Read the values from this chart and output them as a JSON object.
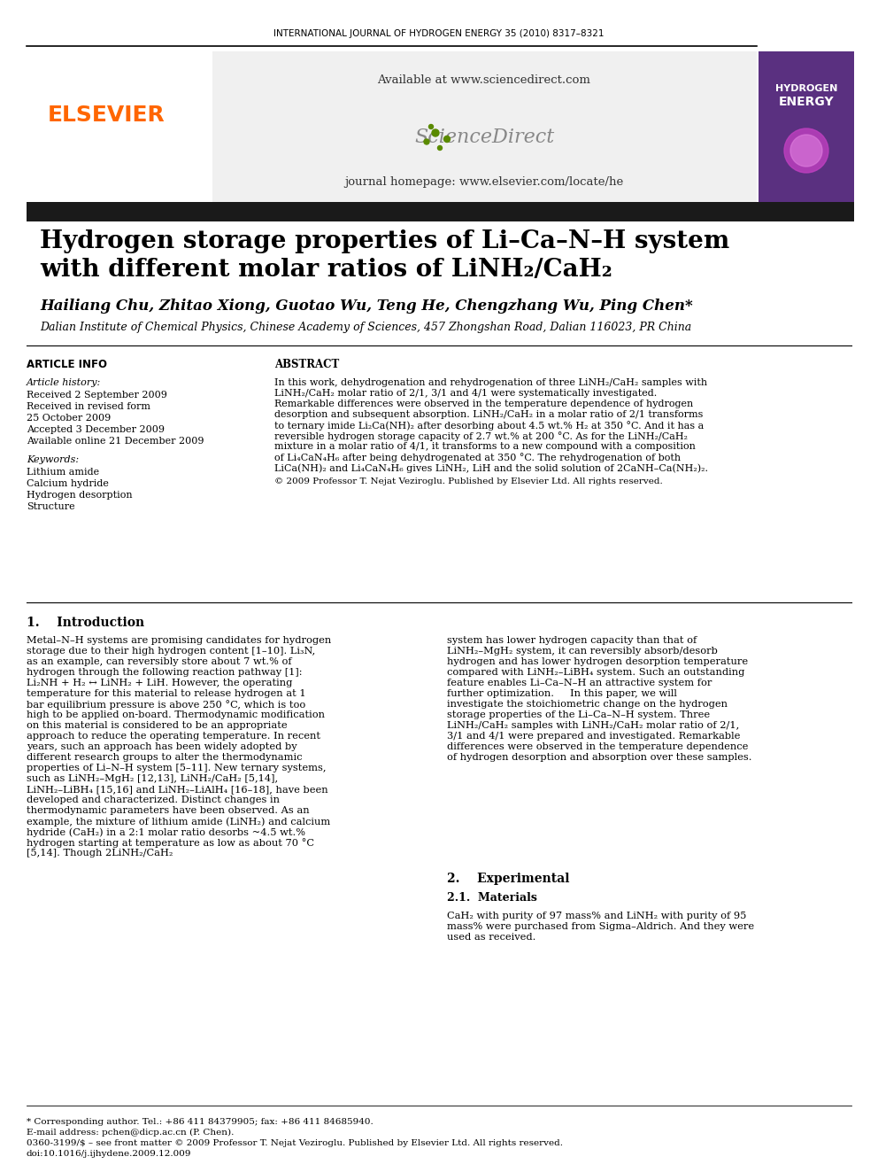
{
  "journal_header": "INTERNATIONAL JOURNAL OF HYDROGEN ENERGY 35 (2010) 8317–8321",
  "title_line1": "Hydrogen storage properties of Li–Ca–N–H system",
  "title_line2": "with different molar ratios of LiNH",
  "title_line2_sub": "2",
  "title_line2_end": "/CaH",
  "title_line2_sub2": "2",
  "authors": "Hailiang Chu, Zhitao Xiong, Guotao Wu, Teng He, Chengzhang Wu, Ping Chen*",
  "affiliation": "Dalian Institute of Chemical Physics, Chinese Academy of Sciences, 457 Zhongshan Road, Dalian 116023, PR China",
  "article_info_header": "ARTICLE INFO",
  "article_history_label": "Article history:",
  "received_label": "Received 2 September 2009",
  "revised_label": "Received in revised form",
  "revised_date": "25 October 2009",
  "accepted_label": "Accepted 3 December 2009",
  "available_label": "Available online 21 December 2009",
  "keywords_label": "Keywords:",
  "keyword1": "Lithium amide",
  "keyword2": "Calcium hydride",
  "keyword3": "Hydrogen desorption",
  "keyword4": "Structure",
  "abstract_header": "ABSTRACT",
  "abstract_text": "In this work, dehydrogenation and rehydrogenation of three LiNH₂/CaH₂ samples with LiNH₂/CaH₂ molar ratio of 2/1, 3/1 and 4/1 were systematically investigated. Remarkable differences were observed in the temperature dependence of hydrogen desorption and subsequent absorption. LiNH₂/CaH₂ in a molar ratio of 2/1 transforms to ternary imide Li₂Ca(NH)₂ after desorbing about 4.5 wt.% H₂ at 350 °C. And it has a reversible hydrogen storage capacity of 2.7 wt.% at 200 °C. As for the LiNH₂/CaH₂ mixture in a molar ratio of 4/1, it transforms to a new compound with a composition of Li₄CaN₄H₆ after being dehydrogenated at 350 °C. The rehydrogenation of both LiCa(NH)₂ and Li₄CaN₄H₆ gives LiNH₂, LiH and the solid solution of 2CaNH–Ca(NH₂)₂.",
  "copyright": "© 2009 Professor T. Nejat Veziroglu. Published by Elsevier Ltd. All rights reserved.",
  "intro_number": "1.",
  "intro_title": "Introduction",
  "intro_col1": "Metal–N–H systems are promising candidates for hydrogen storage due to their high hydrogen content [1–10]. Li₃N, as an example, can reversibly store about 7 wt.% of hydrogen through the following reaction pathway [1]: Li₂NH + H₂ ↔ LiNH₂ + LiH. However, the operating temperature for this material to release hydrogen at 1 bar equilibrium pressure is above 250 °C, which is too high to be applied on-board. Thermodynamic modification on this material is considered to be an appropriate approach to reduce the operating temperature. In recent years, such an approach has been widely adopted by different research groups to alter the thermodynamic properties of Li–N–H system [5–11]. New ternary systems, such as LiNH₂–MgH₂ [12,13], LiNH₂/CaH₂ [5,14], LiNH₂–LiBH₄ [15,16] and LiNH₂–LiAlH₄ [16–18], have been developed and characterized. Distinct changes in thermodynamic parameters have been observed. As an example, the mixture of lithium amide (LiNH₂) and calcium hydride (CaH₂) in a 2:1 molar ratio desorbs ~4.5 wt.% hydrogen starting at temperature as low as about 70 °C [5,14]. Though 2LiNH₂/CaH₂",
  "intro_col2": "system has lower hydrogen capacity than that of LiNH₂–MgH₂ system, it can reversibly absorb/desorb hydrogen and has lower hydrogen desorption temperature compared with LiNH₂–LiBH₄ system. Such an outstanding feature enables Li–Ca–N–H an attractive system for further optimization.\n    In this paper, we will investigate the stoichiometric change on the hydrogen storage properties of the Li–Ca–N–H system. Three LiNH₂/CaH₂ samples with LiNH₂/CaH₂ molar ratio of 2/1, 3/1 and 4/1 were prepared and investigated. Remarkable differences were observed in the temperature dependence of hydrogen desorption and absorption over these samples.",
  "section2_number": "2.",
  "section2_title": "Experimental",
  "section21_number": "2.1.",
  "section21_title": "Materials",
  "section21_text": "CaH₂ with purity of 97 mass% and LiNH₂ with purity of 95 mass% were purchased from Sigma–Aldrich. And they were used as received.",
  "footer_corresponding": "* Corresponding author. Tel.: +86 411 84379905; fax: +86 411 84685940.",
  "footer_email": "E-mail address: pchen@dicp.ac.cn (P. Chen).",
  "footer_issn": "0360-3199/$ – see front matter © 2009 Professor T. Nejat Veziroglu. Published by Elsevier Ltd. All rights reserved.",
  "footer_doi": "doi:10.1016/j.ijhydene.2009.12.009",
  "elsevier_color": "#FF6600",
  "header_bg": "#EEEEEE",
  "dark_bar_color": "#1a1a2e",
  "journal_cover_bg": "#6a0dad"
}
